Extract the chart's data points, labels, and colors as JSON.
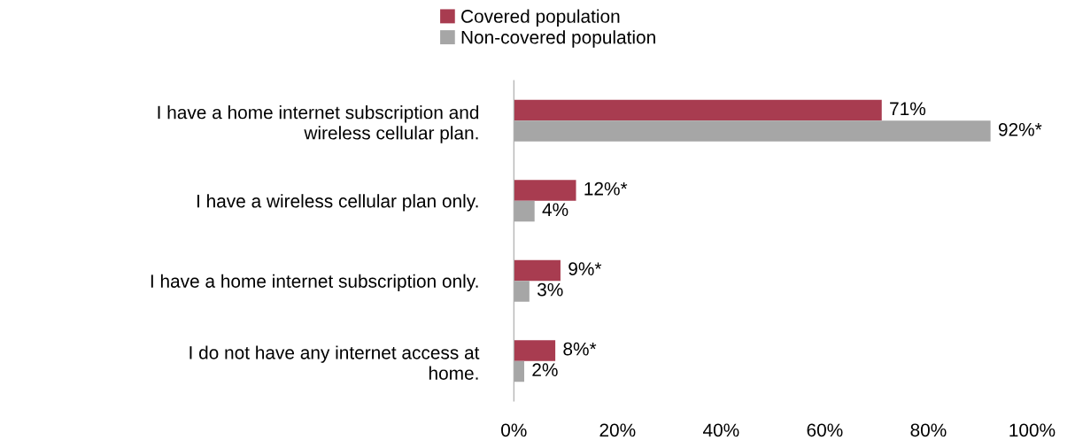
{
  "chart_data": {
    "type": "bar",
    "orientation": "horizontal",
    "categories": [
      "I have a home internet subscription and\nwireless cellular plan.",
      "I have a wireless cellular plan only.",
      "I have a home internet subscription only.",
      "I do not have any internet access at\nhome."
    ],
    "series": [
      {
        "name": "Covered population",
        "color": "#a83c50",
        "values": [
          71,
          12,
          9,
          8
        ],
        "value_labels": [
          "71%",
          "12%*",
          "9%*",
          "8%*"
        ]
      },
      {
        "name": "Non-covered population",
        "color": "#a6a6a6",
        "values": [
          92,
          4,
          3,
          2
        ],
        "value_labels": [
          "92%*",
          "4%",
          "3%",
          "2%"
        ]
      }
    ],
    "xlim": [
      0,
      100
    ],
    "xticks": [
      {
        "value": 0,
        "label": "0%"
      },
      {
        "value": 20,
        "label": "20%"
      },
      {
        "value": 40,
        "label": "40%"
      },
      {
        "value": 60,
        "label": "60%"
      },
      {
        "value": 80,
        "label": "80%"
      },
      {
        "value": 100,
        "label": "100%"
      }
    ],
    "grid": false,
    "legend": "top"
  }
}
